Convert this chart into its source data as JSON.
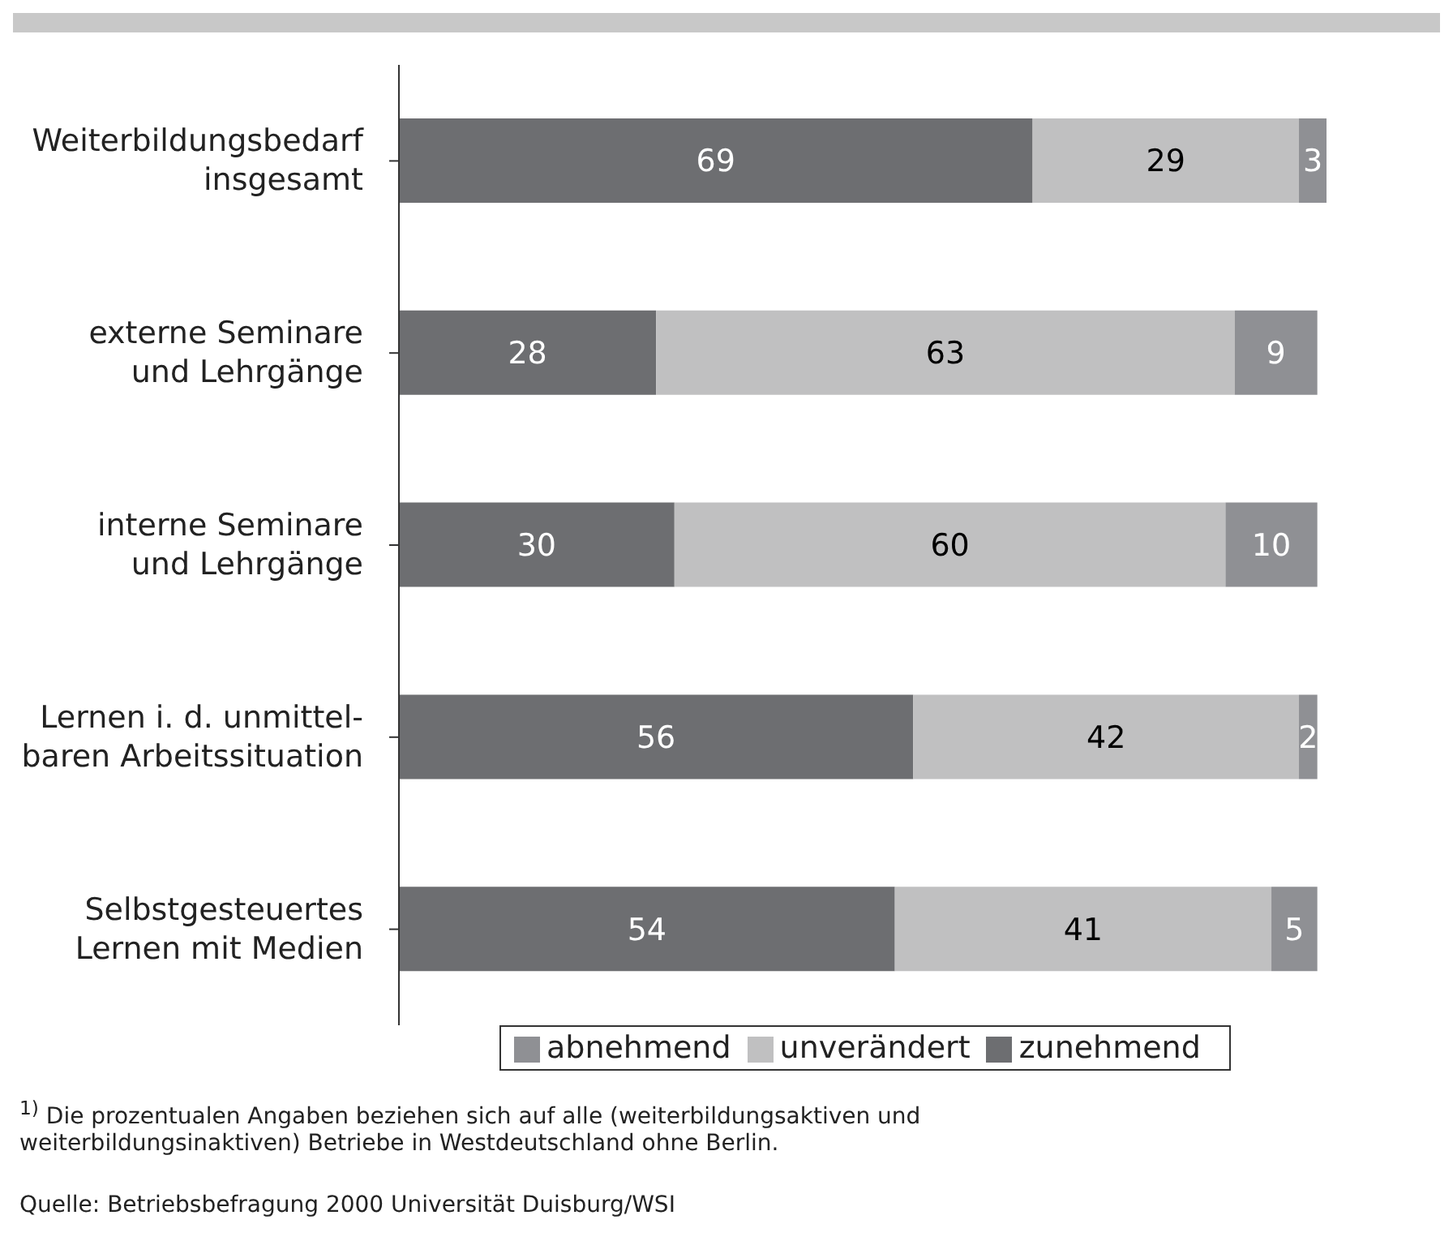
{
  "chart_data": {
    "type": "bar",
    "orientation": "horizontal",
    "stacked": true,
    "data_labels": true,
    "legend": "bottom",
    "grid": false,
    "categories": [
      "Weiterbildungsbedarf\ninsgesamt",
      "externe Seminare\nund Lehrgänge",
      "interne Seminare\nund Lehrgänge",
      "Lernen i. d. unmittel-\nbaren Arbeitssituation",
      "Selbstgesteuertes\nLernen mit Medien"
    ],
    "series": [
      {
        "name": "zunehmend",
        "color": "#6d6e71",
        "values": [
          69,
          28,
          30,
          56,
          54
        ]
      },
      {
        "name": "unverändert",
        "color": "#c0c0c1",
        "values": [
          29,
          63,
          60,
          42,
          41
        ]
      },
      {
        "name": "abnehmend",
        "color": "#8f9094",
        "values": [
          3,
          9,
          10,
          2,
          5
        ]
      }
    ],
    "annotations": [
      "$^{1)}$ Die prozentualen Angaben beziehen sich auf alle (weiterbildungsaktiven und weiterbildungsinaktiven) Betriebe in Westdeutschland ohne Berlin.",
      "Quelle: Betriebsbefragung 2000 Universität Duisburg/WSI"
    ]
  }
}
